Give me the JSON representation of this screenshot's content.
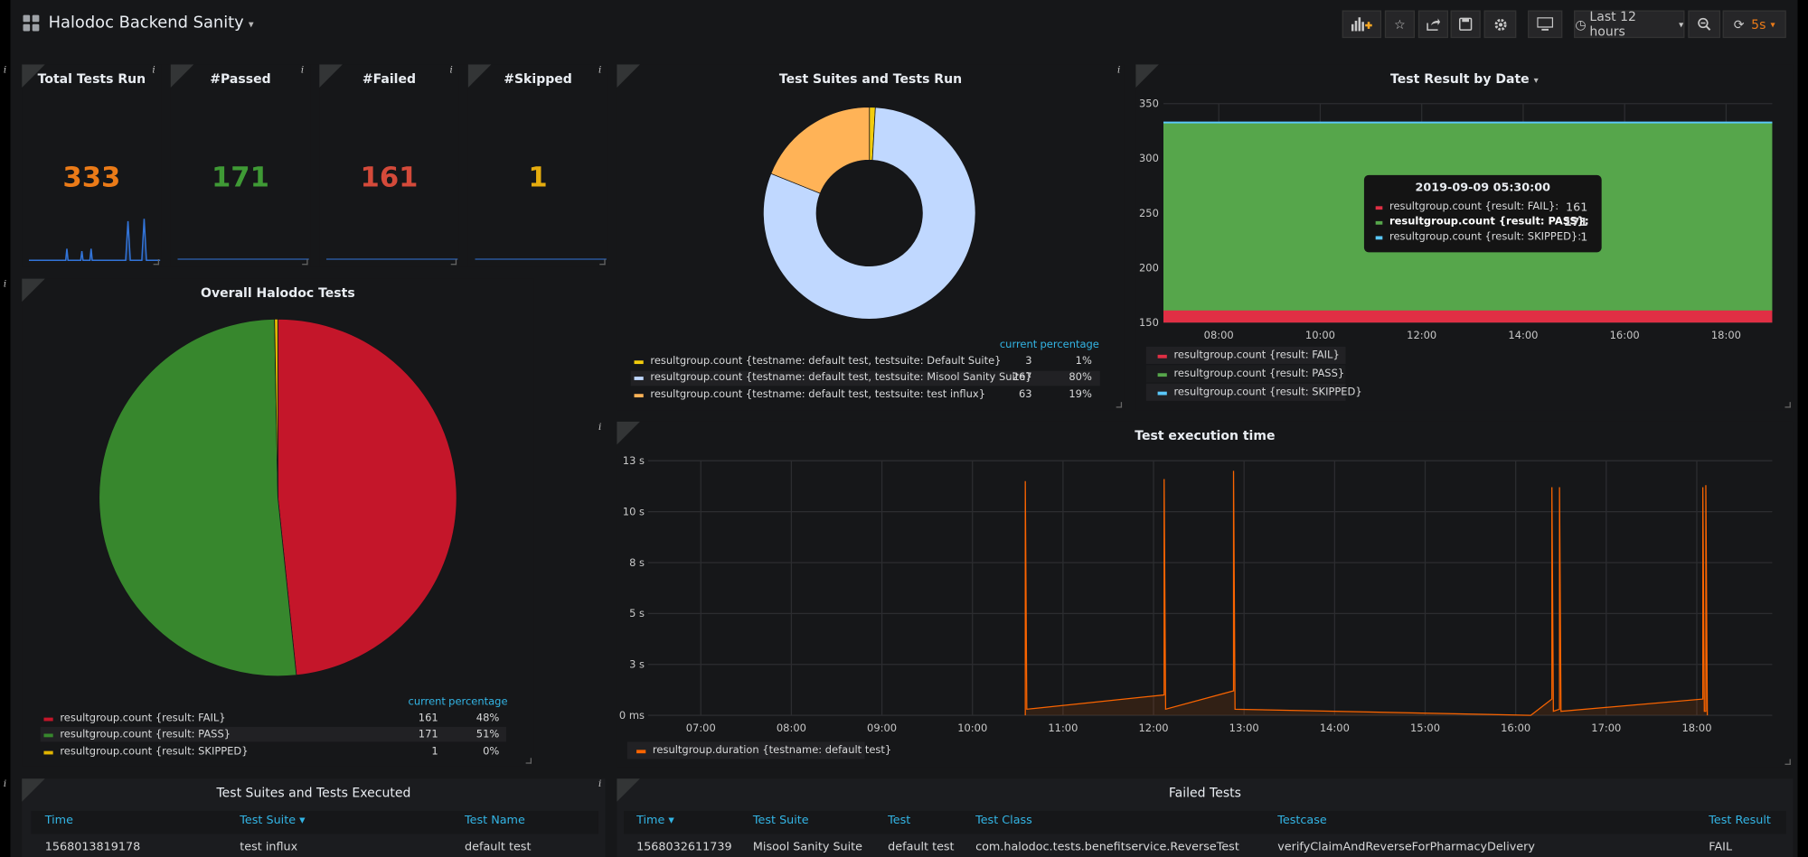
{
  "dashboard": {
    "title": "Halodoc Backend Sanity"
  },
  "toolbar": {
    "time_range": "Last 12 hours",
    "refresh_interval": "5s"
  },
  "panels": {
    "info_glyph": "i",
    "stat": [
      {
        "title": "Total Tests Run",
        "value": "333",
        "color": "#eb7b18"
      },
      {
        "title": "#Passed",
        "value": "171",
        "color": "#3f9a35"
      },
      {
        "title": "#Failed",
        "value": "161",
        "color": "#d44a3a"
      },
      {
        "title": "#Skipped",
        "value": "1",
        "color": "#e5ac0e"
      }
    ],
    "suites_donut": {
      "title": "Test Suites and Tests Run",
      "col_current": "current",
      "col_percentage": "percentage",
      "legend": [
        {
          "label": "resultgroup.count {testname: default test, testsuite: Default Suite}",
          "current": "3",
          "percentage": "1%",
          "color": "#f2cc0c"
        },
        {
          "label": "resultgroup.count {testname: default test, testsuite: Misool Sanity Suite}",
          "current": "267",
          "percentage": "80%",
          "color": "#c0d8ff"
        },
        {
          "label": "resultgroup.count {testname: default test, testsuite: test influx}",
          "current": "63",
          "percentage": "19%",
          "color": "#ffb357"
        }
      ]
    },
    "result_by_date": {
      "title": "Test Result by Date",
      "legend": [
        {
          "label": "resultgroup.count {result: FAIL}",
          "color": "#e02f44"
        },
        {
          "label": "resultgroup.count {result: PASS}",
          "color": "#56a64b"
        },
        {
          "label": "resultgroup.count {result: SKIPPED}",
          "color": "#5ac8fa"
        }
      ],
      "tooltip": {
        "time": "2019-09-09 05:30:00",
        "rows": [
          {
            "label": "resultgroup.count {result: FAIL}:",
            "value": "161",
            "color": "#e02f44"
          },
          {
            "label": "resultgroup.count {result: PASS}:",
            "value": "171",
            "color": "#56a64b"
          },
          {
            "label": "resultgroup.count {result: SKIPPED}:",
            "value": "1",
            "color": "#5ac8fa"
          }
        ]
      }
    },
    "overall": {
      "title": "Overall Halodoc Tests",
      "col_current": "current",
      "col_percentage": "percentage",
      "legend": [
        {
          "label": "resultgroup.count {result: FAIL}",
          "current": "161",
          "percentage": "48%",
          "color": "#c4162a"
        },
        {
          "label": "resultgroup.count {result: PASS}",
          "current": "171",
          "percentage": "51%",
          "color": "#37872d"
        },
        {
          "label": "resultgroup.count {result: SKIPPED}",
          "current": "1",
          "percentage": "0%",
          "color": "#e0b400"
        }
      ]
    },
    "exec_time": {
      "title": "Test execution time",
      "legend": [
        {
          "label": "resultgroup.duration {testname: default test}",
          "color": "#fa6400"
        }
      ]
    },
    "suites_table": {
      "title": "Test Suites and Tests Executed",
      "columns": [
        "Time",
        "Test Suite",
        "Test Name"
      ],
      "sort_marker": "▾",
      "rows": [
        [
          "1568013819178",
          "test influx",
          "default test"
        ]
      ]
    },
    "failed_table": {
      "title": "Failed Tests",
      "columns": [
        "Time",
        "Test Suite",
        "Test",
        "Test Class",
        "Testcase",
        "Test Result"
      ],
      "sort_marker": "▾",
      "rows": [
        [
          "1568032611739",
          "Misool Sanity Suite",
          "default test",
          "com.halodoc.tests.benefitservice.ReverseTest",
          "verifyClaimAndReverseForPharmacyDelivery",
          "FAIL"
        ]
      ]
    }
  },
  "chart_data": [
    {
      "type": "pie",
      "title": "Test Suites and Tests Run",
      "donut": true,
      "labels": [
        "resultgroup.count {testname: default test, testsuite: Default Suite}",
        "resultgroup.count {testname: default test, testsuite: Misool Sanity Suite}",
        "resultgroup.count {testname: default test, testsuite: test influx}"
      ],
      "values": [
        3,
        267,
        63
      ],
      "colors": [
        "#f2cc0c",
        "#c0d8ff",
        "#ffb357"
      ]
    },
    {
      "type": "pie",
      "title": "Overall Halodoc Tests",
      "labels": [
        "resultgroup.count {result: FAIL}",
        "resultgroup.count {result: PASS}",
        "resultgroup.count {result: SKIPPED}"
      ],
      "values": [
        161,
        171,
        1
      ],
      "colors": [
        "#c4162a",
        "#37872d",
        "#e0b400"
      ]
    },
    {
      "type": "area",
      "title": "Test Result by Date",
      "x_ticks": [
        "08:00",
        "10:00",
        "12:00",
        "14:00",
        "16:00",
        "18:00"
      ],
      "y_ticks": [
        150,
        200,
        250,
        300,
        350
      ],
      "ylim": [
        150,
        350
      ],
      "stacked": true,
      "series": [
        {
          "name": "resultgroup.count {result: FAIL}",
          "value": 161,
          "color": "#e02f44"
        },
        {
          "name": "resultgroup.count {result: PASS}",
          "value": 171,
          "color": "#56a64b"
        },
        {
          "name": "resultgroup.count {result: SKIPPED}",
          "value": 1,
          "color": "#5ac8fa"
        }
      ]
    },
    {
      "type": "line",
      "title": "Test execution time",
      "x_ticks": [
        "07:00",
        "08:00",
        "09:00",
        "10:00",
        "11:00",
        "12:00",
        "13:00",
        "14:00",
        "15:00",
        "16:00",
        "17:00",
        "18:00"
      ],
      "xlim": [
        "06:25",
        "18:50"
      ],
      "y_ticks": [
        "0 ms",
        "3 s",
        "5 s",
        "8 s",
        "10 s",
        "13 s"
      ],
      "y_tick_values": [
        0,
        2.5,
        5,
        7.5,
        10,
        12.5
      ],
      "ylim": [
        0,
        12.5
      ],
      "series": [
        {
          "name": "resultgroup.duration {testname: default test}",
          "color": "#fa6400",
          "x": [
            "10:35",
            "10:35",
            "10:36",
            "12:07",
            "12:07",
            "12:08",
            "12:53",
            "12:53",
            "12:54",
            "16:10",
            "16:24",
            "16:24",
            "16:25",
            "16:29",
            "16:29",
            "16:30",
            "18:04",
            "18:04",
            "18:05",
            "18:06",
            "18:06",
            "18:07"
          ],
          "y": [
            0,
            11.5,
            0.3,
            1.0,
            11.6,
            0.3,
            1.2,
            12.0,
            0.3,
            0,
            0.8,
            11.2,
            0.2,
            0.3,
            11.2,
            0.2,
            0.8,
            11.2,
            0.2,
            0.2,
            11.3,
            0
          ]
        }
      ]
    }
  ]
}
